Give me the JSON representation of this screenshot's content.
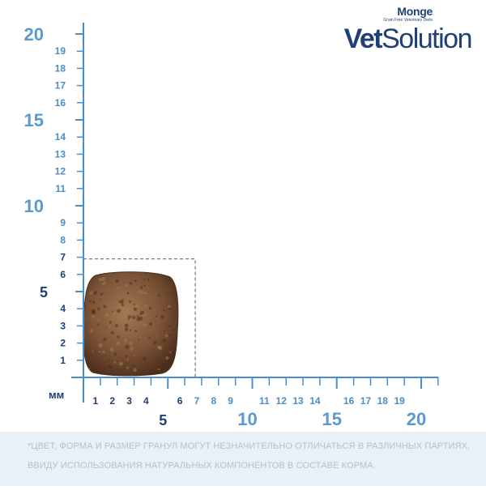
{
  "brand": {
    "monge": "Monge",
    "tagline": "Grain Free Veterinary Diets",
    "vet_bold": "Vet",
    "vet_rest": "Solution",
    "color": "#1f3f78"
  },
  "ruler": {
    "unit_label": "мм",
    "axis_color": "#4a8ec8",
    "major_label_color": "#5a9ad0",
    "minor_label_color": "#4a8ec8",
    "y_major": [
      20,
      15,
      10,
      5
    ],
    "y_minor": [
      19,
      18,
      17,
      16,
      14,
      13,
      12,
      11,
      9,
      8,
      7,
      6,
      4,
      3,
      2,
      1
    ],
    "x_major": [
      5,
      10,
      15,
      20
    ],
    "x_minor": [
      1,
      2,
      3,
      4,
      6,
      7,
      8,
      9,
      11,
      12,
      13,
      14,
      16,
      17,
      18,
      19
    ],
    "x_minor_dark": [
      1,
      2,
      3,
      4,
      6
    ],
    "y_minor_dark": [
      1,
      2,
      3,
      4,
      6,
      7
    ],
    "kibble_box": {
      "width_mm": 6,
      "height_mm": 7
    },
    "kibble_colors": {
      "base": "#7a5236",
      "light": "#a27a52",
      "dark": "#4a2e1c"
    }
  },
  "footer": {
    "line1": "*ЦВЕТ, ФОРМА И РАЗМЕР ГРАНУЛ МОГУТ НЕЗНАЧИТЕЛЬНО ОТЛИЧАТЬСЯ В РАЗЛИЧНЫХ ПАРТИЯХ,",
    "line2": "ВВИДУ ИСПОЛЬЗОВАНИЯ НАТУРАЛЬНЫХ КОМПОНЕНТОВ В СОСТАВЕ КОРМА."
  }
}
